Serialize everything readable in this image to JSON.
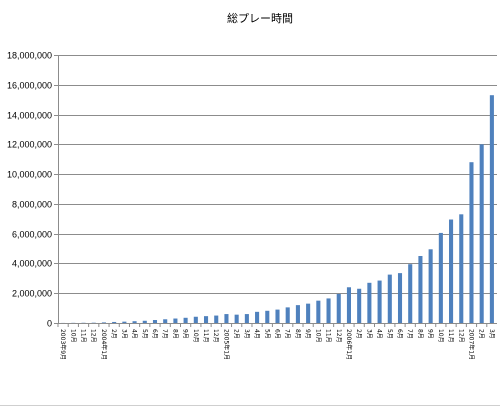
{
  "chart_data": {
    "type": "bar",
    "title": "総プレー時間",
    "xlabel": "",
    "ylabel": "",
    "ylim": [
      0,
      18000000
    ],
    "yticks": [
      0,
      2000000,
      4000000,
      6000000,
      8000000,
      10000000,
      12000000,
      14000000,
      16000000,
      18000000
    ],
    "ytick_labels": [
      "0",
      "2,000,000",
      "4,000,000",
      "6,000,000",
      "8,000,000",
      "10,000,000",
      "12,000,000",
      "14,000,000",
      "16,000,000",
      "18,000,000"
    ],
    "grid": true,
    "legend": "none",
    "categories": [
      "2003年9月",
      "10月",
      "11月",
      "12月",
      "2004年1月",
      "2月",
      "3月",
      "4月",
      "5月",
      "6月",
      "7月",
      "8月",
      "9月",
      "10月",
      "11月",
      "12月",
      "2005年1月",
      "2月",
      "3月",
      "4月",
      "5月",
      "6月",
      "7月",
      "8月",
      "9月",
      "10月",
      "11月",
      "12月",
      "2006年1月",
      "2月",
      "3月",
      "4月",
      "5月",
      "6月",
      "7月",
      "8月",
      "9月",
      "10月",
      "11月",
      "12月",
      "2007年1月",
      "2月",
      "3月"
    ],
    "values": [
      5000,
      10000,
      15000,
      20000,
      40000,
      70000,
      90000,
      120000,
      150000,
      200000,
      250000,
      300000,
      350000,
      420000,
      460000,
      500000,
      600000,
      560000,
      600000,
      750000,
      820000,
      900000,
      1050000,
      1200000,
      1300000,
      1500000,
      1650000,
      1950000,
      2400000,
      2300000,
      2700000,
      2850000,
      3250000,
      3350000,
      3950000,
      4500000,
      4950000,
      6050000,
      6950000,
      7300000,
      10800000,
      12000000,
      15300000
    ],
    "color": "#4f81bd"
  }
}
